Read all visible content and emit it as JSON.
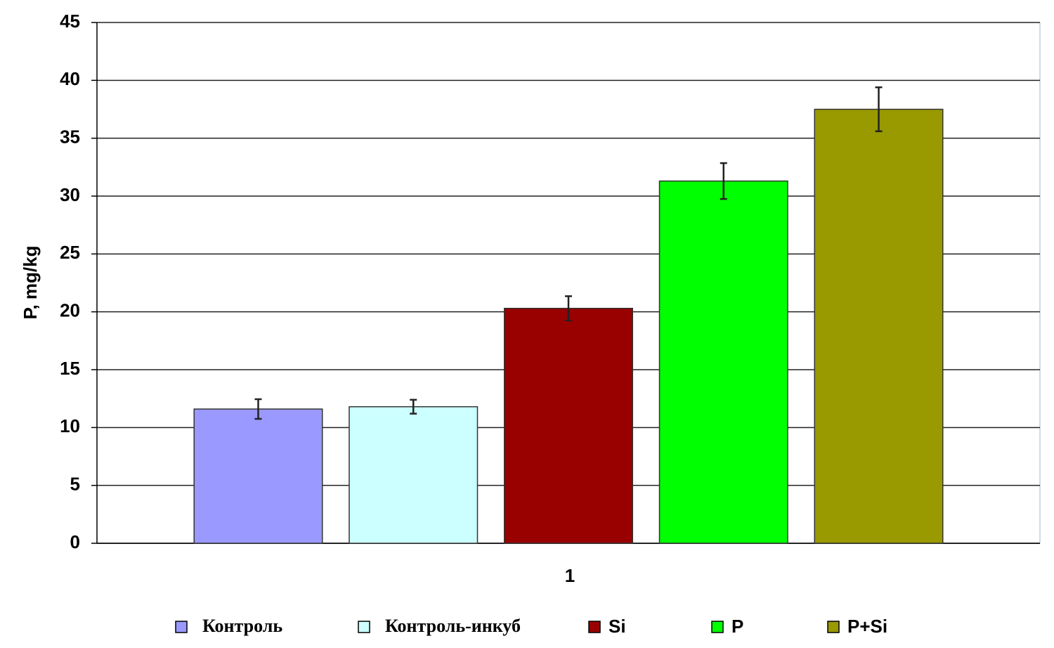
{
  "chart_data": {
    "type": "bar",
    "y_label": "P, mg/kg",
    "categories": [
      "1"
    ],
    "series": [
      {
        "name": "Контроль",
        "color": "#9999ff",
        "values": [
          11.6
        ],
        "errors": [
          0.85
        ]
      },
      {
        "name": "Контроль-инкуб",
        "color": "#ccffff",
        "values": [
          11.8
        ],
        "errors": [
          0.6
        ]
      },
      {
        "name": "Si",
        "color": "#990000",
        "values": [
          20.3
        ],
        "errors": [
          1.05
        ]
      },
      {
        "name": "P",
        "color": "#00ff00",
        "values": [
          31.3
        ],
        "errors": [
          1.55
        ]
      },
      {
        "name": "P+Si",
        "color": "#999900",
        "values": [
          37.5
        ],
        "errors": [
          1.9
        ]
      }
    ],
    "ylim": [
      0,
      45
    ],
    "yticks": [
      0,
      5,
      10,
      15,
      20,
      25,
      30,
      35,
      40,
      45
    ],
    "grid": true,
    "legend": "bottom"
  }
}
